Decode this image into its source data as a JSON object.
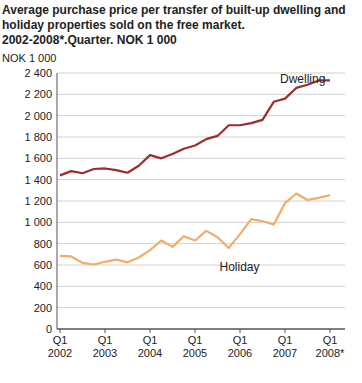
{
  "chart_data": {
    "type": "line",
    "title": "Average purchase price per transfer of built-up dwelling and holiday properties sold on the free market. 2002-2008*.Quarter. NOK 1 000",
    "y_label": "NOK 1 000",
    "categories": [
      "Q1 2002",
      null,
      null,
      null,
      "Q1 2003",
      null,
      null,
      null,
      "Q1 2004",
      null,
      null,
      null,
      "Q1 2005",
      null,
      null,
      null,
      "Q1 2006",
      null,
      null,
      null,
      "Q1 2007",
      null,
      null,
      null,
      "Q1 2008*"
    ],
    "series": [
      {
        "name": "Dwelling",
        "color": "#9b2d2a",
        "values": [
          1440,
          1480,
          1460,
          1500,
          1505,
          1490,
          1465,
          1530,
          1630,
          1600,
          1640,
          1690,
          1720,
          1780,
          1810,
          1910,
          1910,
          1930,
          1960,
          2130,
          2160,
          2260,
          2290,
          2330,
          2330
        ]
      },
      {
        "name": "Holiday",
        "color": "#f0ad69",
        "values": [
          685,
          680,
          620,
          605,
          630,
          650,
          625,
          670,
          740,
          830,
          770,
          870,
          830,
          920,
          860,
          760,
          890,
          1030,
          1010,
          980,
          1180,
          1270,
          1210,
          1230,
          1255
        ]
      }
    ],
    "ylim": [
      0,
      2400
    ],
    "yticks": [
      0,
      200,
      400,
      600,
      800,
      {
        "value": 1000,
        "label": "1 000"
      },
      {
        "value": 1200,
        "label": "1 200"
      },
      {
        "value": 1400,
        "label": "1 400"
      },
      {
        "value": 1600,
        "label": "1 600"
      },
      {
        "value": 1800,
        "label": "1 800"
      },
      {
        "value": 2000,
        "label": "2 000"
      },
      {
        "value": 2200,
        "label": "2 200"
      },
      {
        "value": 2400,
        "label": "2 400"
      }
    ],
    "grid": true
  }
}
